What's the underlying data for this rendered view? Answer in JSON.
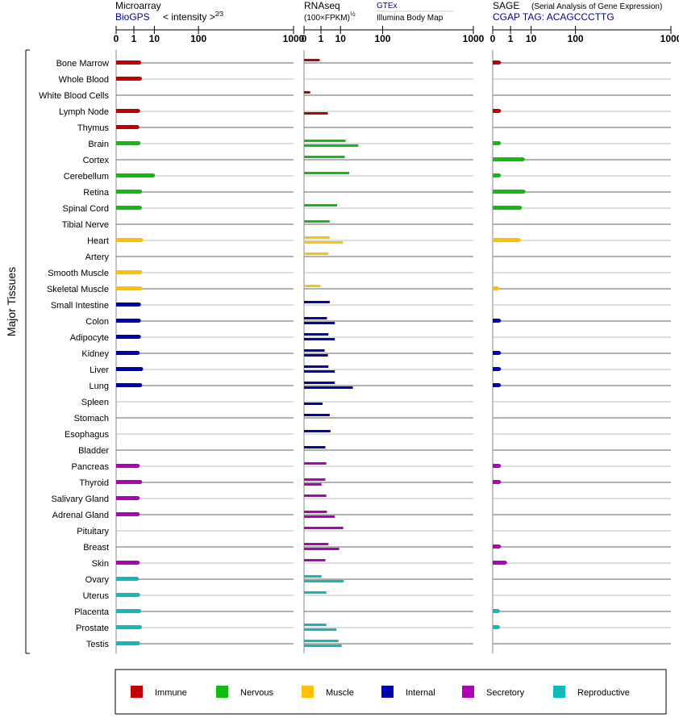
{
  "chart_data": {
    "type": "bar",
    "ylabel": "Major Tissues",
    "categories": [
      "Bone Marrow",
      "Whole Blood",
      "White Blood Cells",
      "Lymph Node",
      "Thymus",
      "Brain",
      "Cortex",
      "Cerebellum",
      "Retina",
      "Spinal Cord",
      "Tibial Nerve",
      "Heart",
      "Artery",
      "Smooth Muscle",
      "Skeletal Muscle",
      "Small Intestine",
      "Colon",
      "Adipocyte",
      "Kidney",
      "Liver",
      "Lung",
      "Spleen",
      "Stomach",
      "Esophagus",
      "Bladder",
      "Pancreas",
      "Thyroid",
      "Salivary Gland",
      "Adrenal Gland",
      "Pituitary",
      "Breast",
      "Skin",
      "Ovary",
      "Uterus",
      "Placenta",
      "Prostate",
      "Testis"
    ],
    "groups": [
      "Immune",
      "Immune",
      "Immune",
      "Immune",
      "Immune",
      "Nervous",
      "Nervous",
      "Nervous",
      "Nervous",
      "Nervous",
      "Nervous",
      "Muscle",
      "Muscle",
      "Muscle",
      "Muscle",
      "Internal",
      "Internal",
      "Internal",
      "Internal",
      "Internal",
      "Internal",
      "Internal",
      "Internal",
      "Internal",
      "Internal",
      "Secretory",
      "Secretory",
      "Secretory",
      "Secretory",
      "Secretory",
      "Secretory",
      "Secretory",
      "Reproductive",
      "Reproductive",
      "Reproductive",
      "Reproductive",
      "Reproductive"
    ],
    "legend": [
      {
        "name": "Immune",
        "color": "#c00000"
      },
      {
        "name": "Nervous",
        "color": "#11bb11"
      },
      {
        "name": "Muscle",
        "color": "#ffc000"
      },
      {
        "name": "Internal",
        "color": "#0000b0"
      },
      {
        "name": "Secretory",
        "color": "#b000b8"
      },
      {
        "name": "Reproductive",
        "color": "#11b8b8"
      }
    ],
    "axis_ticks": [
      "0",
      "1",
      "10",
      "100",
      "1000"
    ],
    "panels": [
      {
        "title": "Microarray",
        "source": "BioGPS",
        "unit_prefix": "< intensity >",
        "unit_exp": "2⁄3",
        "values": [
          2.2,
          2.4,
          0,
          1.9,
          1.7,
          2.0,
          0,
          9.0,
          2.5,
          2.4,
          0,
          2.8,
          0,
          2.5,
          2.6,
          2.1,
          2.1,
          2.1,
          1.8,
          2.8,
          2.5,
          0,
          0,
          0,
          0,
          1.8,
          2.5,
          1.8,
          1.8,
          0,
          0,
          1.8,
          1.6,
          1.9,
          2.2,
          2.4,
          1.9
        ]
      },
      {
        "title": "RNAseq",
        "unit_prefix": "(100×FPKM)",
        "unit_exp": "½",
        "source_top": "GTEx",
        "source_bottom": "Illumina Body Map",
        "gtex": [
          0.8,
          0,
          0.05,
          0,
          0,
          14.8,
          14,
          19,
          0,
          7.5,
          3.5,
          3.5,
          3,
          0,
          0.9,
          3.5,
          2.5,
          3,
          1.8,
          3,
          6,
          0,
          3.5,
          3.8,
          2,
          2.3,
          2,
          2.3,
          2.5,
          12.5,
          3,
          2,
          1.1,
          2.3,
          0,
          2.3,
          8.5
        ],
        "body_map": [
          0,
          0,
          0,
          2.8,
          0,
          33,
          0,
          0,
          0,
          0,
          0,
          12,
          0,
          0,
          0,
          0,
          6,
          6,
          2.8,
          6,
          24,
          1.3,
          0,
          0,
          0,
          0,
          1.1,
          0,
          6,
          0,
          9,
          0,
          13,
          0,
          0,
          7,
          11
        ]
      },
      {
        "title": "SAGE",
        "subtitle": "(Serial Analysis of Gene Expression)",
        "source": "CGAP TAG: ACAGCCCTTG",
        "values": [
          0.05,
          0,
          0,
          0.05,
          0,
          0.05,
          5,
          0.05,
          5.3,
          3.7,
          0,
          3.2,
          0,
          0,
          0.02,
          0,
          0.05,
          0,
          0.05,
          0.05,
          0.05,
          0,
          0,
          0,
          0,
          0.05,
          0.05,
          0,
          0,
          0,
          0.05,
          0.35,
          0,
          0,
          0.03,
          0.03,
          0
        ]
      }
    ]
  }
}
